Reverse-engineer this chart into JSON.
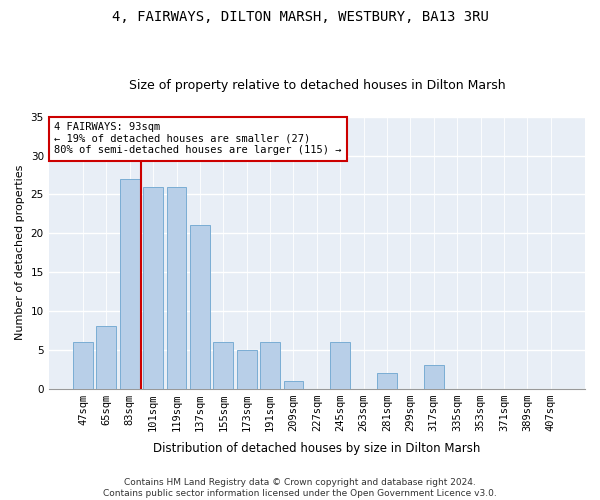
{
  "title": "4, FAIRWAYS, DILTON MARSH, WESTBURY, BA13 3RU",
  "subtitle": "Size of property relative to detached houses in Dilton Marsh",
  "xlabel": "Distribution of detached houses by size in Dilton Marsh",
  "ylabel": "Number of detached properties",
  "categories": [
    "47sqm",
    "65sqm",
    "83sqm",
    "101sqm",
    "119sqm",
    "137sqm",
    "155sqm",
    "173sqm",
    "191sqm",
    "209sqm",
    "227sqm",
    "245sqm",
    "263sqm",
    "281sqm",
    "299sqm",
    "317sqm",
    "335sqm",
    "353sqm",
    "371sqm",
    "389sqm",
    "407sqm"
  ],
  "values": [
    6,
    8,
    27,
    26,
    26,
    21,
    6,
    5,
    6,
    1,
    0,
    6,
    0,
    2,
    0,
    3,
    0,
    0,
    0,
    0,
    0
  ],
  "bar_color": "#b8cfe8",
  "bar_edge_color": "#7aadd4",
  "vline_color": "#cc0000",
  "annotation_text": "4 FAIRWAYS: 93sqm\n← 19% of detached houses are smaller (27)\n80% of semi-detached houses are larger (115) →",
  "annotation_box_color": "#ffffff",
  "annotation_box_edge_color": "#cc0000",
  "ylim": [
    0,
    35
  ],
  "yticks": [
    0,
    5,
    10,
    15,
    20,
    25,
    30,
    35
  ],
  "bg_color": "#e8eef6",
  "footer": "Contains HM Land Registry data © Crown copyright and database right 2024.\nContains public sector information licensed under the Open Government Licence v3.0.",
  "title_fontsize": 10,
  "subtitle_fontsize": 9,
  "xlabel_fontsize": 8.5,
  "ylabel_fontsize": 8,
  "tick_fontsize": 7.5,
  "footer_fontsize": 6.5,
  "ann_fontsize": 7.5
}
